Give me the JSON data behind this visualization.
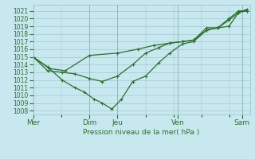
{
  "xlabel": "Pression niveau de la mer( hPa )",
  "background_color": "#c8e8f0",
  "grid_color": "#9bbfc8",
  "line_color": "#2d6e2d",
  "ylim": [
    1007.5,
    1021.8
  ],
  "yticks": [
    1008,
    1009,
    1010,
    1011,
    1012,
    1013,
    1014,
    1015,
    1016,
    1017,
    1018,
    1019,
    1020,
    1021
  ],
  "day_labels": [
    "Mer",
    "Dim",
    "Jeu",
    "Ven",
    "Sam"
  ],
  "day_positions": [
    0.0,
    3.5,
    5.25,
    9.0,
    13.0
  ],
  "xlim": [
    0,
    13.5
  ],
  "series_dip": {
    "x": [
      0,
      0.9,
      1.8,
      2.6,
      3.2,
      3.8,
      4.3,
      4.9,
      5.5,
      6.2,
      7.0,
      7.8,
      8.5,
      9.3,
      10.0,
      10.8,
      11.5,
      12.2,
      12.8,
      13.3
    ],
    "y": [
      1015.0,
      1013.7,
      1012.0,
      1011.0,
      1010.4,
      1009.5,
      1009.0,
      1008.2,
      1009.5,
      1011.8,
      1012.5,
      1014.2,
      1015.5,
      1016.7,
      1017.0,
      1018.5,
      1018.8,
      1020.0,
      1021.0,
      1021.0
    ]
  },
  "series_mid": {
    "x": [
      0,
      0.9,
      1.8,
      2.6,
      3.5,
      4.3,
      5.25,
      6.2,
      7.0,
      7.8,
      8.5,
      9.3,
      10.0,
      10.8,
      11.5,
      12.2,
      12.8,
      13.3
    ],
    "y": [
      1015.0,
      1013.2,
      1013.0,
      1012.8,
      1012.2,
      1011.8,
      1012.5,
      1014.0,
      1015.5,
      1016.2,
      1016.8,
      1017.0,
      1017.2,
      1018.5,
      1018.8,
      1019.8,
      1020.8,
      1021.0
    ]
  },
  "series_high": {
    "x": [
      0,
      1.0,
      2.0,
      3.5,
      5.25,
      6.5,
      7.5,
      8.5,
      9.3,
      10.0,
      10.8,
      11.5,
      12.2,
      12.8,
      13.3
    ],
    "y": [
      1015.0,
      1013.5,
      1013.2,
      1015.2,
      1015.5,
      1016.0,
      1016.5,
      1016.8,
      1017.0,
      1017.2,
      1018.8,
      1018.8,
      1019.0,
      1020.8,
      1021.2
    ]
  },
  "marker_style": "+",
  "marker_size": 3.5,
  "line_width": 0.9
}
